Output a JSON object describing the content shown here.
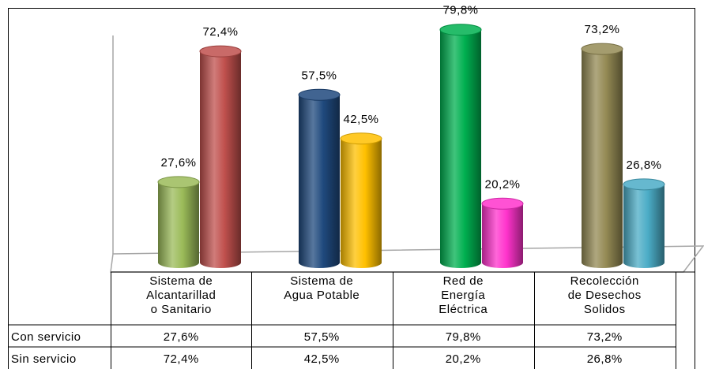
{
  "chart_data": {
    "type": "bar",
    "categories": [
      "Sistema de\nAlcantarillad\no Sanitario",
      "Sistema de\nAgua Potable",
      "Red de\nEnergía\nEléctrica",
      "Recolección\nde Desechos\nSolidos"
    ],
    "series": [
      {
        "name": "Con servicio",
        "colors": [
          "#9bbb59",
          "#1f497d",
          "#00b050",
          "#948a54"
        ],
        "values": [
          27.6,
          57.5,
          79.8,
          73.2
        ],
        "value_labels": [
          "27,6%",
          "57,5%",
          "79,8%",
          "73,2%"
        ]
      },
      {
        "name": "Sin servicio",
        "colors": [
          "#c0504d",
          "#ffc000",
          "#ff33cc",
          "#4bacc6"
        ],
        "values": [
          72.4,
          42.5,
          20.2,
          26.8
        ],
        "value_labels": [
          "72,4%",
          "42,5%",
          "20,2%",
          "26,8%"
        ]
      }
    ]
  }
}
